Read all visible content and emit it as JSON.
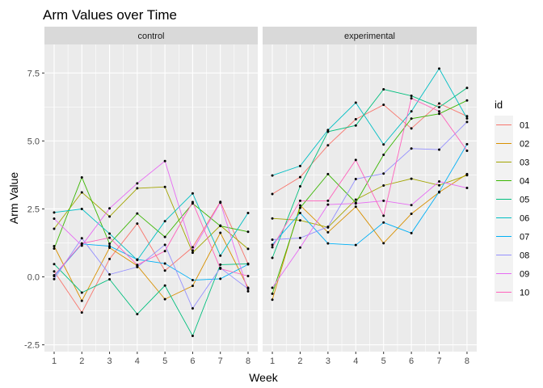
{
  "chart_data": {
    "type": "line",
    "title": "Arm Values over Time",
    "xlabel": "Week",
    "ylabel": "Arm Value",
    "x": [
      1,
      2,
      3,
      4,
      5,
      6,
      7,
      8
    ],
    "x_ticks": [
      "1",
      "2",
      "3",
      "4",
      "5",
      "6",
      "7",
      "8"
    ],
    "xlim": [
      0.65,
      8.35
    ],
    "ylim": [
      -2.75,
      8.55
    ],
    "y_ticks": [
      -2.5,
      0.0,
      2.5,
      5.0,
      7.5
    ],
    "y_tick_labels": [
      "-2.5",
      "0.0",
      "2.5",
      "5.0",
      "7.5"
    ],
    "grid": true,
    "legend": {
      "title": "id",
      "position": "right"
    },
    "facets": [
      {
        "label": "control",
        "series": [
          {
            "name": "01",
            "color": "#F8766D",
            "values": [
              0.2,
              -1.31,
              0.66,
              1.96,
              0.23,
              1.09,
              2.76,
              0.48
            ]
          },
          {
            "name": "02",
            "color": "#D89000",
            "values": [
              1.13,
              -0.88,
              1.07,
              0.41,
              -0.82,
              -0.33,
              1.62,
              -0.4
            ]
          },
          {
            "name": "03",
            "color": "#A3A500",
            "values": [
              1.77,
              3.11,
              2.22,
              3.26,
              3.31,
              0.89,
              1.89,
              1.03
            ]
          },
          {
            "name": "04",
            "color": "#39B600",
            "values": [
              1.04,
              3.66,
              1.22,
              2.33,
              1.47,
              2.7,
              1.87,
              1.66
            ]
          },
          {
            "name": "05",
            "color": "#00BF7D",
            "values": [
              0.47,
              -0.58,
              -0.09,
              -1.37,
              -0.32,
              -2.17,
              0.45,
              0.48
            ]
          },
          {
            "name": "06",
            "color": "#00BFC4",
            "values": [
              2.37,
              2.5,
              1.59,
              0.62,
              2.05,
              3.07,
              0.78,
              2.35
            ]
          },
          {
            "name": "07",
            "color": "#00B0F6",
            "values": [
              0.03,
              1.21,
              1.13,
              0.64,
              0.49,
              -0.12,
              -0.07,
              0.46
            ]
          },
          {
            "name": "08",
            "color": "#9590FF",
            "values": [
              -0.08,
              1.42,
              0.09,
              0.36,
              1.18,
              -1.16,
              0.33,
              -0.44
            ]
          },
          {
            "name": "09",
            "color": "#E76BF3",
            "values": [
              2.14,
              1.15,
              2.52,
              3.44,
              4.26,
              0.97,
              2.73,
              -0.53
            ]
          },
          {
            "name": "10",
            "color": "#FF62BC",
            "values": [
              0.06,
              1.23,
              1.44,
              0.44,
              0.95,
              2.75,
              0.3,
              0.03
            ]
          }
        ]
      },
      {
        "label": "experimental",
        "series": [
          {
            "name": "01",
            "color": "#F8766D",
            "values": [
              3.05,
              3.67,
              4.84,
              5.8,
              6.33,
              5.46,
              6.38,
              5.91
            ]
          },
          {
            "name": "02",
            "color": "#D89000",
            "values": [
              -0.84,
              2.63,
              1.64,
              2.58,
              1.24,
              2.32,
              3.11,
              3.78
            ]
          },
          {
            "name": "03",
            "color": "#A3A500",
            "values": [
              2.15,
              2.08,
              1.82,
              2.84,
              3.36,
              3.61,
              3.37,
              3.74
            ]
          },
          {
            "name": "04",
            "color": "#39B600",
            "values": [
              -0.62,
              2.54,
              3.78,
              2.73,
              4.49,
              5.82,
              6.0,
              6.49
            ]
          },
          {
            "name": "05",
            "color": "#00BF7D",
            "values": [
              0.7,
              3.33,
              5.34,
              5.57,
              6.9,
              6.66,
              6.24,
              6.95
            ]
          },
          {
            "name": "06",
            "color": "#00BFC4",
            "values": [
              3.73,
              4.08,
              5.4,
              6.41,
              4.87,
              6.09,
              7.66,
              5.83
            ]
          },
          {
            "name": "07",
            "color": "#00B0F6",
            "values": [
              1.18,
              2.35,
              1.23,
              1.17,
              2.0,
              1.61,
              3.13,
              4.88
            ]
          },
          {
            "name": "08",
            "color": "#9590FF",
            "values": [
              1.37,
              1.43,
              1.84,
              3.6,
              3.8,
              4.72,
              4.68,
              5.7
            ]
          },
          {
            "name": "09",
            "color": "#E76BF3",
            "values": [
              -0.4,
              1.08,
              2.66,
              2.7,
              2.8,
              2.64,
              3.51,
              3.27
            ]
          },
          {
            "name": "10",
            "color": "#FF62BC",
            "values": [
              1.09,
              2.8,
              2.8,
              4.3,
              2.25,
              6.57,
              6.09,
              4.64
            ]
          }
        ]
      }
    ]
  }
}
